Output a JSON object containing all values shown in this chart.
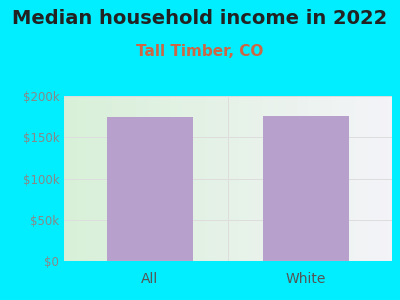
{
  "title": "Median household income in 2022",
  "subtitle": "Tall Timber, CO",
  "categories": [
    "All",
    "White"
  ],
  "values": [
    175000,
    176000
  ],
  "bar_color": "#b8a0cc",
  "background_color": "#00eeff",
  "ylim": [
    0,
    200000
  ],
  "yticks": [
    0,
    50000,
    100000,
    150000,
    200000
  ],
  "ytick_labels": [
    "$0",
    "$50k",
    "$100k",
    "$150k",
    "$200k"
  ],
  "title_fontsize": 14,
  "subtitle_fontsize": 11,
  "subtitle_color": "#cc6644",
  "tick_color": "#888888",
  "grid_color": "#dddddd",
  "xtick_color": "#555555"
}
